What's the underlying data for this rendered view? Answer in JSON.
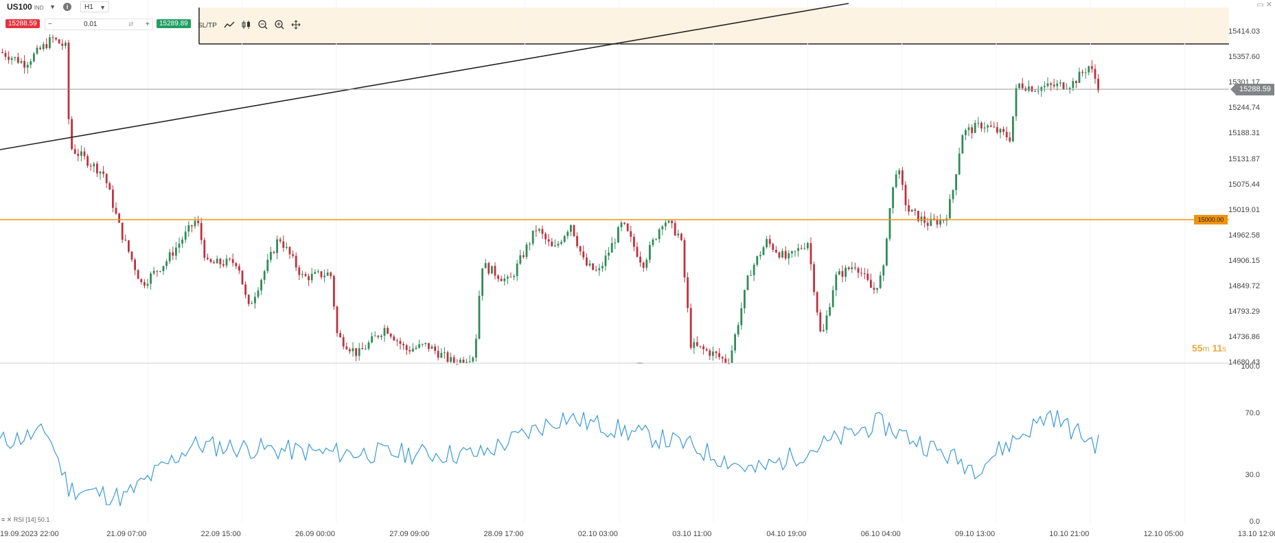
{
  "header": {
    "symbol": "US100",
    "symbol_type": "IND",
    "timeframe": "H1",
    "sell_price": "15288.59",
    "buy_price": "15289.89",
    "quantity": "0.01",
    "minus_label": "−",
    "plus_label": "+",
    "sltp_label": "SL/TP"
  },
  "price_axis": [
    "15414.03",
    "15357.60",
    "15301.17",
    "15244.74",
    "15188.31",
    "15131.87",
    "15075.44",
    "15019.01",
    "14962.58",
    "14906.15",
    "14849.72",
    "14793.29",
    "14736.86",
    "14680.43"
  ],
  "current_price": "15288.59",
  "level_price": "15000.00",
  "timer": {
    "minutes": "55",
    "m": "m",
    "seconds": "11",
    "s": "s"
  },
  "rsi": {
    "label": "RSI [14] 50.1",
    "axis": [
      "100.0",
      "70.0",
      "30.0",
      "0.0"
    ]
  },
  "time_axis": [
    "19.09.2023 22:00",
    "21.09 07:00",
    "22.09 15:00",
    "26.09 00:00",
    "27.09 09:00",
    "28.09 17:00",
    "02.10 03:00",
    "03.10 11:00",
    "04.10 19:00",
    "06.10 04:00",
    "09.10 13:00",
    "10.10 21:00",
    "12.10 05:00",
    "13.10 12:00"
  ],
  "colors": {
    "up": "#2e8b57",
    "down": "#c0303c",
    "rsi": "#3a98d8",
    "level": "#f0930e",
    "zone": "#fdf3e2"
  },
  "chart_data": {
    "type": "candlestick",
    "price_axis_ticks": [
      15414.03,
      15357.6,
      15301.17,
      15244.74,
      15188.31,
      15131.87,
      15075.44,
      15019.01,
      14962.58,
      14906.15,
      14849.72,
      14793.29,
      14736.86,
      14680.43
    ],
    "horizontal_level": 15000.0,
    "current_price": 15288.59,
    "rsi_axis": [
      0,
      30,
      70,
      100
    ],
    "rsi_keypoints": [
      {
        "t": "19.09.2023 22:00",
        "v": 52
      },
      {
        "t": "20.09",
        "v": 58
      },
      {
        "t": "21.09 07:00",
        "v": 22
      },
      {
        "t": "21.09",
        "v": 16
      },
      {
        "t": "22.09 15:00",
        "v": 50
      },
      {
        "t": "26.09 00:00",
        "v": 45
      },
      {
        "t": "27.09 09:00",
        "v": 44
      },
      {
        "t": "28.09 17:00",
        "v": 68
      },
      {
        "t": "02.10 03:00",
        "v": 50
      },
      {
        "t": "03.10 11:00",
        "v": 33
      },
      {
        "t": "04.10 19:00",
        "v": 64
      },
      {
        "t": "06.10 04:00",
        "v": 35
      },
      {
        "t": "09.10 13:00",
        "v": 70
      },
      {
        "t": "10.10 21:00",
        "v": 60
      },
      {
        "t": "last",
        "v": 50
      }
    ]
  }
}
